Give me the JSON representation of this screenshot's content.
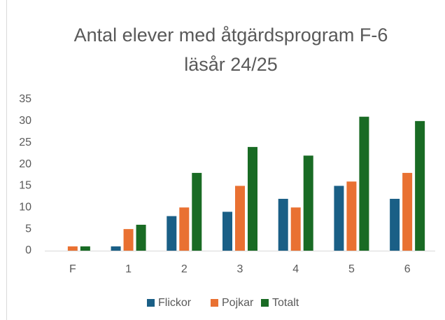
{
  "chart_data": {
    "type": "bar",
    "title": [
      "Antal elever med åtgärdsprogram F-6",
      "läsår 24/25"
    ],
    "categories": [
      "F",
      "1",
      "2",
      "3",
      "4",
      "5",
      "6"
    ],
    "series": [
      {
        "name": "Flickor",
        "color": "#1a5f86",
        "values": [
          0,
          1,
          8,
          9,
          12,
          15,
          12
        ]
      },
      {
        "name": "Pojkar",
        "color": "#e97132",
        "values": [
          1,
          5,
          10,
          15,
          10,
          16,
          18
        ]
      },
      {
        "name": "Totalt",
        "color": "#196b24",
        "values": [
          1,
          6,
          18,
          24,
          22,
          31,
          30
        ]
      }
    ],
    "ylim": [
      0,
      35
    ],
    "yticks": [
      0,
      5,
      10,
      15,
      20,
      25,
      30,
      35
    ],
    "grid": false,
    "legend": "bottom"
  }
}
